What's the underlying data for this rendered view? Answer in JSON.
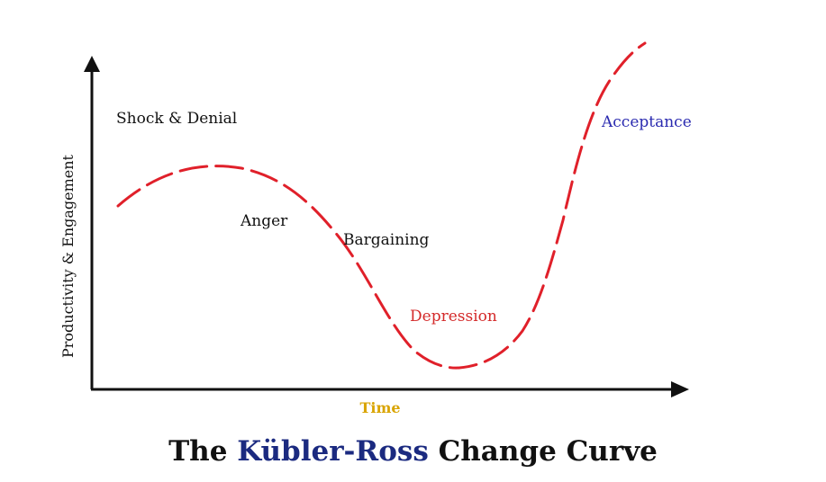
{
  "title": {
    "prefix": "The",
    "highlight": "Kübler-Ross",
    "suffix": "Change Curve"
  },
  "axes": {
    "y_label": "Productivity & Engagement",
    "x_label": "Time"
  },
  "stages": [
    "Shock & Denial",
    "Anger",
    "Bargaining",
    "Depression",
    "Acceptance"
  ],
  "colors": {
    "curve": "#e0202a",
    "axis": "#111111",
    "highlight": "#1b2a80",
    "acceptance": "#2b2bb0",
    "depression": "#d42a2a",
    "time": "#d9a400",
    "text": "#111111"
  }
}
